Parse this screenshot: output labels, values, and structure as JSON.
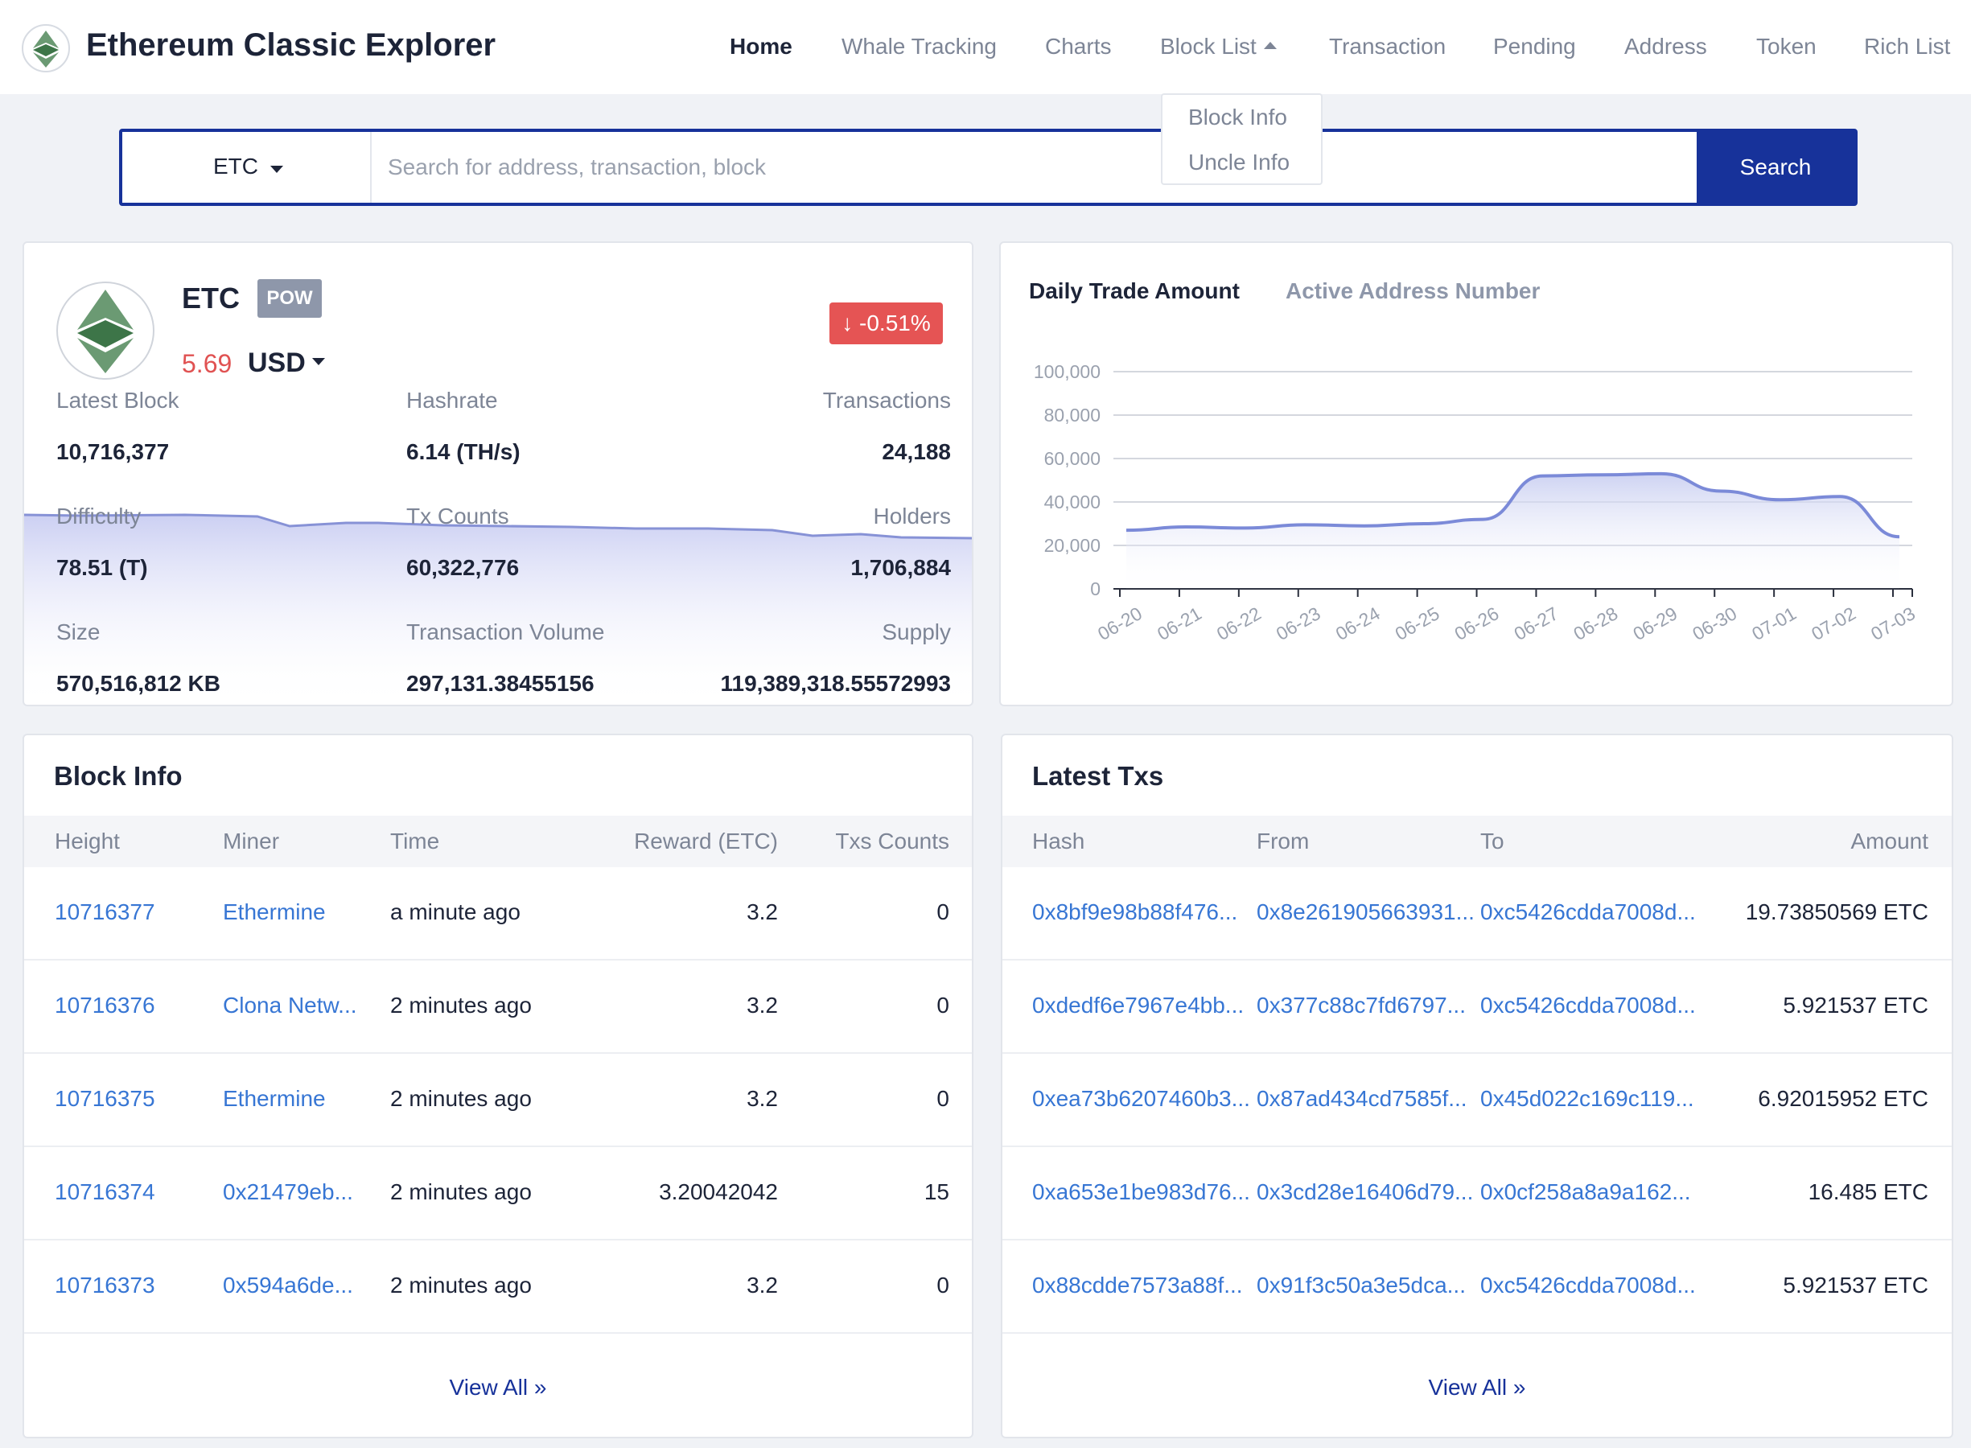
{
  "header": {
    "brand": "Ethereum Classic Explorer",
    "nav": [
      "Home",
      "Whale Tracking",
      "Charts",
      "Block List",
      "Transaction",
      "Pending",
      "Address",
      "Token",
      "Rich List"
    ],
    "dropdown": [
      "Block Info",
      "Uncle Info"
    ]
  },
  "search": {
    "coin": "ETC",
    "placeholder": "Search for address, transaction, block",
    "button": "Search"
  },
  "overview": {
    "coin": "ETC",
    "consensus": "POW",
    "price": "5.69",
    "currency": "USD",
    "change": "-0.51%",
    "stats": {
      "latest_block_label": "Latest Block",
      "latest_block": "10,716,377",
      "hashrate_label": "Hashrate",
      "hashrate": "6.14 (TH/s)",
      "transactions_label": "Transactions",
      "transactions": "24,188",
      "difficulty_label": "Difficulty",
      "difficulty": "78.51 (T)",
      "tx_counts_label": "Tx Counts",
      "tx_counts": "60,322,776",
      "holders_label": "Holders",
      "holders": "1,706,884",
      "size_label": "Size",
      "size": "570,516,812 KB",
      "tx_volume_label": "Transaction Volume",
      "tx_volume": "297,131.38455156",
      "supply_label": "Supply",
      "supply": "119,389,318.55572993"
    }
  },
  "chart_tabs": {
    "active": "Daily Trade Amount",
    "inactive": "Active Address Number"
  },
  "chart_data": {
    "type": "area",
    "x": [
      "06-20",
      "06-21",
      "06-22",
      "06-23",
      "06-24",
      "06-25",
      "06-26",
      "06-27",
      "06-28",
      "06-29",
      "06-30",
      "07-01",
      "07-02",
      "07-03"
    ],
    "series": [
      {
        "values": [
          27000,
          28500,
          28000,
          29500,
          29000,
          30000,
          32000,
          52000,
          52500,
          53000,
          45000,
          41000,
          42500,
          24000
        ]
      }
    ],
    "yticks": [
      "0",
      "20,000",
      "40,000",
      "60,000",
      "80,000",
      "100,000"
    ],
    "ylim": [
      0,
      100000
    ],
    "grid": true,
    "color": "#7b8ad8"
  },
  "blocks": {
    "title": "Block Info",
    "headers": [
      "Height",
      "Miner",
      "Time",
      "Reward (ETC)",
      "Txs Counts"
    ],
    "rows": [
      [
        "10716377",
        "Ethermine",
        "a minute ago",
        "3.2",
        "0"
      ],
      [
        "10716376",
        "Clona Netw...",
        "2 minutes ago",
        "3.2",
        "0"
      ],
      [
        "10716375",
        "Ethermine",
        "2 minutes ago",
        "3.2",
        "0"
      ],
      [
        "10716374",
        "0x21479eb...",
        "2 minutes ago",
        "3.20042042",
        "15"
      ],
      [
        "10716373",
        "0x594a6de...",
        "2 minutes ago",
        "3.2",
        "0"
      ]
    ],
    "view_all": "View All"
  },
  "txs": {
    "title": "Latest Txs",
    "headers": [
      "Hash",
      "From",
      "To",
      "Amount"
    ],
    "rows": [
      [
        "0x8bf9e98b88f476...",
        "0x8e261905663931...",
        "0xc5426cdda7008d...",
        "19.73850569 ETC"
      ],
      [
        "0xdedf6e7967e4bb...",
        "0x377c88c7fd6797...",
        "0xc5426cdda7008d...",
        "5.921537 ETC"
      ],
      [
        "0xea73b6207460b3...",
        "0x87ad434cd7585f...",
        "0x45d022c169c119...",
        "6.92015952 ETC"
      ],
      [
        "0xa653e1be983d76...",
        "0x3cd28e16406d79...",
        "0x0cf258a8a9a162...",
        "16.485 ETC"
      ],
      [
        "0x88cdde7573a88f...",
        "0x91f3c50a3e5dca...",
        "0xc5426cdda7008d...",
        "5.921537 ETC"
      ]
    ],
    "view_all": "View All"
  }
}
